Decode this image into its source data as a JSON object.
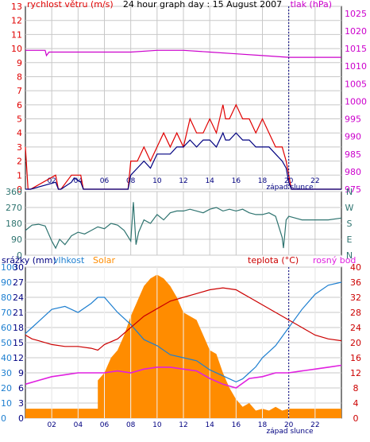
{
  "colors": {
    "wind": "#e00000",
    "gust_dark": "#000080",
    "pressure": "#cc00cc",
    "wind_dir": "#2f7470",
    "humidity": "#1e7fd0",
    "rain": "#000080",
    "solar": "#ff8c00",
    "temperature": "#cc0000",
    "dew_point": "#e020e0",
    "grid": "#c8c8c8",
    "frame": "#000000",
    "bg": "#ffffff"
  },
  "chart_data": [
    {
      "type": "line",
      "title": "24 hour graph day : 15 August 2007",
      "left_label": "rychlost větru (m/s)",
      "right_label": "tlak (hPa)",
      "x_ticks": [
        "02",
        "04",
        "06",
        "08",
        "10",
        "12",
        "14",
        "16",
        "18",
        "20",
        "22"
      ],
      "sunset_label": "západ slunce",
      "x_range": [
        0,
        24
      ],
      "left_ticks": [
        0,
        1,
        2,
        3,
        4,
        5,
        6,
        7,
        8,
        9,
        10,
        11,
        12,
        13
      ],
      "right_ticks": [
        975,
        980,
        985,
        990,
        995,
        1000,
        1005,
        1010,
        1015,
        1020,
        1025
      ],
      "ylim_left": [
        0,
        13
      ],
      "ylim_right": [
        975,
        1027
      ],
      "series": [
        {
          "kind": "gust",
          "x": [
            0,
            0.2,
            0.4,
            2.3,
            2.5,
            2.7,
            3.5,
            3.7,
            4.2,
            4.4,
            4.6,
            7.8,
            8,
            8.5,
            9,
            9.5,
            10,
            10.5,
            11,
            11.5,
            12,
            12.5,
            13,
            13.5,
            14,
            14.5,
            15,
            15.2,
            15.5,
            16,
            16.5,
            17,
            17.5,
            18,
            18.5,
            19,
            19.5,
            19.8,
            20,
            20.2,
            20.5,
            24
          ],
          "y": [
            3,
            0,
            0,
            1,
            0,
            0,
            1,
            1,
            1,
            0,
            0,
            0,
            2,
            2,
            3,
            2,
            3,
            4,
            3,
            4,
            3,
            5,
            4,
            4,
            5,
            4,
            6,
            5,
            5,
            6,
            5,
            5,
            4,
            5,
            4,
            3,
            3,
            2,
            1,
            0,
            0,
            0
          ]
        },
        {
          "kind": "average",
          "x": [
            0,
            0.2,
            0.4,
            2.3,
            2.5,
            2.7,
            3.5,
            3.7,
            4.2,
            4.4,
            4.6,
            7.8,
            8,
            8.5,
            9,
            9.5,
            10,
            10.5,
            11,
            11.5,
            12,
            12.5,
            13,
            13.5,
            14,
            14.5,
            15,
            15.2,
            15.5,
            16,
            16.5,
            17,
            17.5,
            18,
            18.5,
            19,
            19.5,
            19.8,
            20,
            20.2,
            20.5,
            24
          ],
          "y": [
            0,
            0,
            0,
            0.5,
            0,
            0,
            0.5,
            0.8,
            0.5,
            0,
            0,
            0,
            1,
            1.5,
            2,
            1.5,
            2.5,
            2.5,
            2.5,
            3,
            3,
            3.5,
            3,
            3.5,
            3.5,
            3,
            4,
            3.5,
            3.5,
            4,
            3.5,
            3.5,
            3,
            3,
            3,
            2.5,
            2,
            1.5,
            0.5,
            0,
            0,
            0
          ]
        },
        {
          "kind": "pressure",
          "x": [
            0,
            1.5,
            1.6,
            1.8,
            2,
            4,
            6,
            8,
            10,
            12,
            14,
            16,
            18,
            20,
            22,
            23,
            24
          ],
          "y": [
            1014.5,
            1014.5,
            1013,
            1014,
            1014,
            1014,
            1014,
            1014,
            1014.5,
            1014.5,
            1014,
            1013.5,
            1013,
            1012.5,
            1012.5,
            1012.5,
            1012.5
          ]
        }
      ]
    },
    {
      "type": "line",
      "title": "",
      "left_ticks": [
        0,
        90,
        180,
        270,
        360
      ],
      "right_labels": [
        "N",
        "W",
        "S",
        "E",
        "N"
      ],
      "ylim": [
        0,
        360
      ],
      "series": [
        {
          "x": [
            0,
            0.5,
            1,
            1.5,
            2,
            2.3,
            2.6,
            3,
            3.5,
            4,
            4.5,
            5,
            5.5,
            6,
            6.5,
            7,
            7.5,
            8,
            8.2,
            8.4,
            8.6,
            9,
            9.5,
            10,
            10.5,
            11,
            11.5,
            12,
            12.5,
            13,
            13.5,
            14,
            14.5,
            15,
            15.5,
            16,
            16.5,
            17,
            17.5,
            18,
            18.5,
            19,
            19.5,
            19.6,
            19.8,
            20,
            20.5,
            21,
            22,
            23,
            24
          ],
          "y": [
            140,
            170,
            175,
            165,
            80,
            40,
            90,
            60,
            110,
            130,
            120,
            140,
            160,
            150,
            180,
            170,
            140,
            80,
            300,
            60,
            130,
            200,
            180,
            230,
            200,
            240,
            250,
            250,
            260,
            250,
            240,
            260,
            270,
            250,
            260,
            250,
            260,
            240,
            230,
            230,
            240,
            220,
            100,
            40,
            200,
            220,
            210,
            200,
            200,
            200,
            210
          ]
        }
      ]
    },
    {
      "type": "line",
      "labels": {
        "rain": "srážky (mm)",
        "humidity": "vlhkost",
        "solar": "Solar",
        "temperature": "teplota (°C)",
        "dew_point": "rosný bod"
      },
      "rain_ticks": [
        0,
        3,
        6,
        9,
        12,
        15,
        18,
        21,
        24,
        27,
        30
      ],
      "humidity_ticks": [
        0,
        10,
        20,
        30,
        40,
        50,
        60,
        70,
        80,
        90,
        100
      ],
      "temp_ticks": [
        0,
        4,
        8,
        12,
        16,
        20,
        24,
        28,
        32,
        36,
        40
      ],
      "x_ticks": [
        "02",
        "04",
        "06",
        "08",
        "10",
        "12",
        "14",
        "16",
        "18",
        "20",
        "22"
      ],
      "sunset_label": "západ slunce",
      "x_range": [
        0,
        24
      ],
      "ylim_temp": [
        0,
        40
      ],
      "ylim_humidity": [
        0,
        100
      ],
      "ylim_rain": [
        0,
        30
      ],
      "series": [
        {
          "kind": "solar",
          "x": [
            0,
            5.5,
            5.5,
            6,
            6.5,
            7,
            7.5,
            8,
            8.5,
            9,
            9.5,
            10,
            10.5,
            11,
            11.5,
            12,
            12.5,
            13,
            13.5,
            14,
            14.5,
            15,
            15.5,
            16,
            16.5,
            17,
            17.5,
            18,
            18.5,
            19,
            19.5,
            20,
            20.5,
            24
          ],
          "y": [
            2.5,
            2.5,
            10,
            12,
            16,
            18,
            22,
            27,
            31,
            35,
            37,
            38,
            37,
            35,
            32,
            28,
            27,
            26,
            22,
            18,
            17,
            12,
            8,
            5,
            3,
            4,
            2,
            2.5,
            2,
            3,
            2,
            2.5,
            2.5,
            2.5
          ]
        },
        {
          "kind": "humidity",
          "x": [
            0,
            0.5,
            1,
            2,
            3,
            4,
            5,
            5.5,
            6,
            7,
            8,
            9,
            10,
            11,
            12,
            13,
            14,
            15,
            15.5,
            16,
            16.5,
            17,
            17.5,
            18,
            19,
            20,
            21,
            22,
            23,
            24
          ],
          "y": [
            56,
            60,
            64,
            72,
            74,
            70,
            76,
            80,
            80,
            70,
            62,
            52,
            48,
            42,
            40,
            38,
            32,
            28,
            26,
            24,
            26,
            30,
            34,
            40,
            48,
            60,
            72,
            82,
            88,
            90
          ],
          "scale": "humidity"
        },
        {
          "kind": "temperature",
          "x": [
            0,
            0.5,
            1,
            2,
            3,
            4,
            5,
            5.5,
            6,
            7,
            8,
            9,
            10,
            11,
            12,
            13,
            14,
            15,
            16,
            16.5,
            17,
            18,
            19,
            20,
            21,
            22,
            23,
            24
          ],
          "y": [
            22,
            21,
            20.5,
            19.5,
            19,
            19,
            18.5,
            18,
            19.5,
            21,
            24,
            27,
            29,
            31,
            32,
            33,
            34,
            34.5,
            34,
            33,
            32,
            30,
            28,
            26,
            24,
            22,
            21,
            20.5
          ],
          "scale": "temp"
        },
        {
          "kind": "dew_point",
          "x": [
            0,
            1,
            2,
            3,
            4,
            5,
            6,
            7,
            8,
            9,
            10,
            11,
            12,
            13,
            14,
            15,
            16,
            17,
            18,
            19,
            20,
            21,
            22,
            23,
            24
          ],
          "y": [
            9,
            10,
            11,
            11.5,
            12,
            12,
            12,
            12.5,
            12,
            13,
            13.5,
            13.5,
            13,
            12.5,
            10.5,
            9,
            8,
            10.5,
            11,
            12,
            12,
            12.5,
            13,
            13.5,
            14
          ],
          "scale": "temp"
        }
      ]
    }
  ]
}
